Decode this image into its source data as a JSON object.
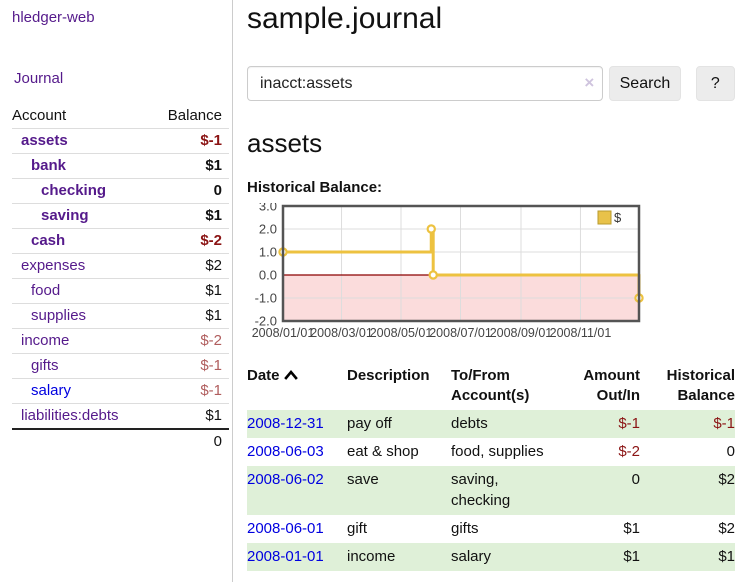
{
  "sidebar": {
    "brand": "hledger-web",
    "journal_link": "Journal",
    "accounts": {
      "header_account": "Account",
      "header_balance": "Balance",
      "rows": [
        {
          "name": "assets",
          "balance": "$-1"
        },
        {
          "name": "bank",
          "balance": "$1"
        },
        {
          "name": "checking",
          "balance": "0"
        },
        {
          "name": "saving",
          "balance": "$1"
        },
        {
          "name": "cash",
          "balance": "$-2"
        },
        {
          "name": "expenses",
          "balance": "$2"
        },
        {
          "name": "food",
          "balance": "$1"
        },
        {
          "name": "supplies",
          "balance": "$1"
        },
        {
          "name": "income",
          "balance": "$-2"
        },
        {
          "name": "gifts",
          "balance": "$-1"
        },
        {
          "name": "salary",
          "balance": "$-1"
        },
        {
          "name": "liabilities:debts",
          "balance": "$1"
        }
      ],
      "total": "0"
    }
  },
  "main": {
    "title": "sample.journal",
    "search": {
      "value": "inacct:assets",
      "clear_icon": "×",
      "button_label": "Search",
      "help_label": "?"
    },
    "account_heading": "assets",
    "chart_label": "Historical Balance:",
    "register": {
      "headers": {
        "date": "Date",
        "description": "Description",
        "accounts": "To/From Account(s)",
        "amount": "Amount Out/In",
        "balance": "Historical Balance"
      },
      "rows": [
        {
          "date": "2008-12-31",
          "description": "pay off",
          "accounts": "debts",
          "amount": "$-1",
          "balance": "$-1"
        },
        {
          "date": "2008-06-03",
          "description": "eat & shop",
          "accounts": "food, supplies",
          "amount": "$-2",
          "balance": "0"
        },
        {
          "date": "2008-06-02",
          "description": "save",
          "accounts": "saving, checking",
          "amount": "0",
          "balance": "$2"
        },
        {
          "date": "2008-06-01",
          "description": "gift",
          "accounts": "gifts",
          "amount": "$1",
          "balance": "$2"
        },
        {
          "date": "2008-01-01",
          "description": "income",
          "accounts": "salary",
          "amount": "$1",
          "balance": "$1"
        }
      ]
    }
  },
  "chart_data": {
    "type": "line",
    "subtype": "step",
    "title": "Historical Balance",
    "legend": [
      "$"
    ],
    "legend_position": "top-right",
    "grid": true,
    "xlim_days": [
      0,
      365
    ],
    "ylim": [
      -2.0,
      3.0
    ],
    "x_ticks": [
      {
        "day": 0,
        "label": "2008/01/01"
      },
      {
        "day": 60,
        "label": "2008/03/01"
      },
      {
        "day": 121,
        "label": "2008/05/01"
      },
      {
        "day": 182,
        "label": "2008/07/01"
      },
      {
        "day": 244,
        "label": "2008/09/01"
      },
      {
        "day": 305,
        "label": "2008/11/01"
      }
    ],
    "y_ticks": [
      "3.0",
      "2.0",
      "1.0",
      "0.0",
      "-1.0",
      "-2.0"
    ],
    "y_tick_values": [
      3,
      2,
      1,
      0,
      -1,
      -2
    ],
    "series": [
      {
        "name": "$",
        "points": [
          {
            "date": "2008-01-01",
            "day": 0,
            "value": 1
          },
          {
            "date": "2008-06-01",
            "day": 152,
            "value": 2
          },
          {
            "date": "2008-06-03",
            "day": 154,
            "value": 0
          },
          {
            "date": "2008-12-31",
            "day": 365,
            "value": -1
          }
        ]
      }
    ]
  },
  "colors": {
    "accent_link_purple": "#551a8b",
    "link_blue": "#0000e0",
    "negative_red": "#8b1414",
    "negative_dim": "#b05d5d",
    "row_stripe_green": "#dff0d8",
    "series_gold": "#edc240",
    "legend_box_fill": "#e8c24a",
    "legend_box_border": "#b89b2e",
    "grid_line": "#dddddd",
    "chart_border": "#545454",
    "neg_region_fill": "#fbdcdc",
    "zero_line": "#8b0000"
  }
}
